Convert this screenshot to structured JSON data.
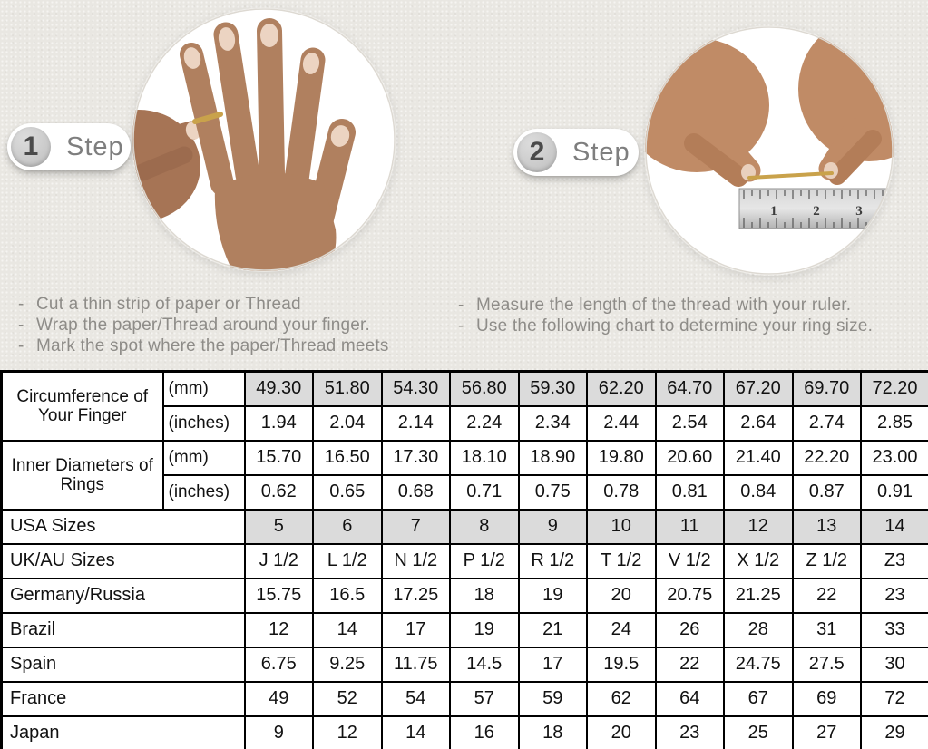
{
  "steps": [
    {
      "number": "1",
      "label": "Step",
      "photo": "hand-with-paper-thread-around-finger",
      "instructions": [
        "Cut a thin strip of paper or Thread",
        "Wrap the paper/Thread around your finger.",
        "Mark the spot where the paper/Thread meets"
      ]
    },
    {
      "number": "2",
      "label": "Step",
      "photo": "hands-measuring-thread-with-ruler",
      "instructions": [
        "Measure the length of the thread with your ruler.",
        "Use the following chart to determine your ring size."
      ]
    }
  ],
  "size_chart": {
    "shaded_color": "#dbdbdb",
    "rows": [
      {
        "label": "Circumference of Your Finger",
        "rowspan": 2,
        "unit": "(mm)",
        "shaded": true,
        "values": [
          "49.30",
          "51.80",
          "54.30",
          "56.80",
          "59.30",
          "62.20",
          "64.70",
          "67.20",
          "69.70",
          "72.20"
        ]
      },
      {
        "unit": "(inches)",
        "shaded": false,
        "values": [
          "1.94",
          "2.04",
          "2.14",
          "2.24",
          "2.34",
          "2.44",
          "2.54",
          "2.64",
          "2.74",
          "2.85"
        ]
      },
      {
        "label": "Inner Diameters of Rings",
        "rowspan": 2,
        "unit": "(mm)",
        "shaded": false,
        "values": [
          "15.70",
          "16.50",
          "17.30",
          "18.10",
          "18.90",
          "19.80",
          "20.60",
          "21.40",
          "22.20",
          "23.00"
        ]
      },
      {
        "unit": "(inches)",
        "shaded": false,
        "values": [
          "0.62",
          "0.65",
          "0.68",
          "0.71",
          "0.75",
          "0.78",
          "0.81",
          "0.84",
          "0.87",
          "0.91"
        ]
      },
      {
        "label": "USA Sizes",
        "shaded": true,
        "values": [
          "5",
          "6",
          "7",
          "8",
          "9",
          "10",
          "11",
          "12",
          "13",
          "14"
        ]
      },
      {
        "label": "UK/AU Sizes",
        "shaded": false,
        "values": [
          "J 1/2",
          "L 1/2",
          "N 1/2",
          "P 1/2",
          "R 1/2",
          "T 1/2",
          "V 1/2",
          "X 1/2",
          "Z 1/2",
          "Z3"
        ]
      },
      {
        "label": "Germany/Russia",
        "shaded": false,
        "values": [
          "15.75",
          "16.5",
          "17.25",
          "18",
          "19",
          "20",
          "20.75",
          "21.25",
          "22",
          "23"
        ]
      },
      {
        "label": "Brazil",
        "shaded": false,
        "values": [
          "12",
          "14",
          "17",
          "19",
          "21",
          "24",
          "26",
          "28",
          "31",
          "33"
        ]
      },
      {
        "label": "Spain",
        "shaded": false,
        "values": [
          "6.75",
          "9.25",
          "11.75",
          "14.5",
          "17",
          "19.5",
          "22",
          "24.75",
          "27.5",
          "30"
        ]
      },
      {
        "label": "France",
        "shaded": false,
        "values": [
          "49",
          "52",
          "54",
          "57",
          "59",
          "62",
          "64",
          "67",
          "69",
          "72"
        ]
      },
      {
        "label": "Japan",
        "shaded": false,
        "values": [
          "9",
          "12",
          "14",
          "16",
          "18",
          "20",
          "23",
          "25",
          "27",
          "29"
        ]
      }
    ]
  },
  "colors": {
    "background": "#e9e7e2",
    "shaded_cell": "#dbdbdb",
    "gold_thread": "#c9a24b",
    "instruction_text": "#8e8c88"
  }
}
